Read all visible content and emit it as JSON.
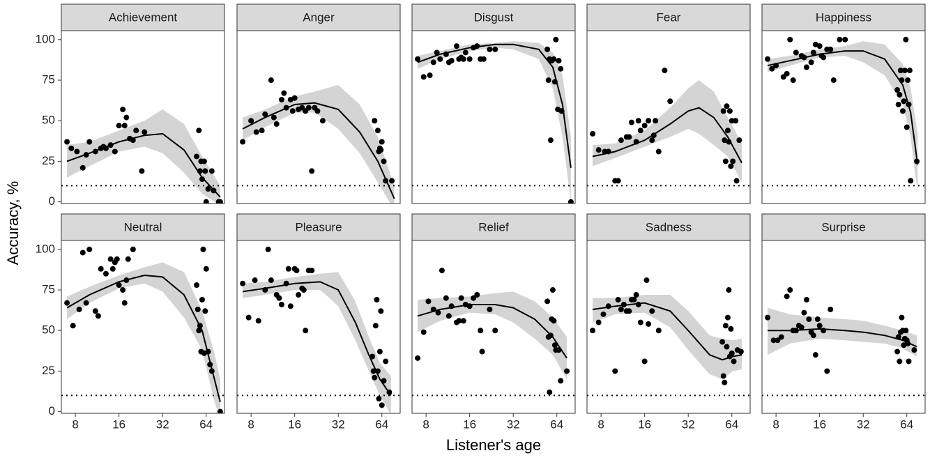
{
  "xlabel": "Listener's age",
  "ylabel": "Accuracy, %",
  "xlim": [
    6.4,
    85.6
  ],
  "ylim": [
    -1,
    105.5
  ],
  "xscale": "log2",
  "xticks": [
    8,
    16,
    32,
    64
  ],
  "yticks": [
    0,
    25,
    50,
    75,
    100
  ],
  "hline": 10,
  "point_color": "#000000",
  "line_color": "#000000",
  "ribbon_color": "#d4d4d4",
  "chart_data": [
    {
      "type": "scatter",
      "title": "Achievement",
      "x": [
        7,
        7.5,
        8.2,
        9,
        9.5,
        10,
        11,
        12,
        12.5,
        13,
        14,
        15,
        16,
        17,
        17.5,
        18,
        19,
        20,
        21,
        23,
        24,
        55,
        57,
        58,
        59,
        60,
        62,
        63,
        64,
        66,
        70,
        72,
        78,
        80
      ],
      "values": [
        37,
        33,
        31,
        21,
        29,
        37,
        31,
        33,
        34,
        33,
        35,
        31,
        47,
        57,
        47,
        52,
        39,
        38,
        44,
        19,
        43,
        28,
        44,
        19,
        25,
        14,
        25,
        19,
        0,
        8,
        19,
        7,
        0,
        0
      ],
      "smooth": {
        "x": [
          7,
          10,
          16,
          24,
          32,
          45,
          60,
          80
        ],
        "values": [
          25,
          30,
          37,
          41,
          42,
          32,
          15,
          3
        ],
        "lower": [
          15,
          22,
          31,
          34,
          30,
          18,
          5,
          -2
        ],
        "upper": [
          35,
          37,
          44,
          50,
          57,
          48,
          28,
          10
        ]
      }
    },
    {
      "type": "scatter",
      "title": "Anger",
      "x": [
        7,
        8,
        8.7,
        9.5,
        10,
        11,
        11.5,
        12,
        13,
        13.5,
        14,
        15,
        15.5,
        16,
        17,
        18,
        19,
        20,
        21,
        22,
        23,
        25,
        57,
        60,
        61,
        62,
        63,
        64,
        66,
        68,
        75
      ],
      "values": [
        37,
        50,
        43,
        44,
        54,
        75,
        52,
        48,
        63,
        67,
        58,
        63,
        56,
        64,
        57,
        58,
        56,
        58,
        19,
        58,
        56,
        50,
        50,
        44,
        31,
        33,
        32,
        37,
        25,
        13,
        13
      ],
      "smooth": {
        "x": [
          7,
          10,
          16,
          22,
          32,
          45,
          60,
          78
        ],
        "values": [
          45,
          52,
          60,
          61,
          57,
          43,
          25,
          2
        ],
        "lower": [
          38,
          46,
          55,
          55,
          45,
          30,
          12,
          -5
        ],
        "upper": [
          52,
          57,
          65,
          68,
          72,
          60,
          40,
          10
        ]
      }
    },
    {
      "type": "scatter",
      "title": "Disgust",
      "x": [
        7,
        7.7,
        8.5,
        9,
        9.5,
        10,
        11,
        11.5,
        12,
        13,
        13.5,
        14,
        14.5,
        15,
        16,
        17,
        18,
        19,
        20,
        22,
        24,
        55,
        56,
        57,
        58,
        59,
        61,
        62,
        63,
        65,
        66,
        68,
        69,
        80
      ],
      "values": [
        88,
        77,
        78,
        86,
        92,
        88,
        91,
        86,
        87,
        96,
        88,
        89,
        88,
        92,
        88,
        95,
        96,
        88,
        88,
        94,
        94,
        94,
        75,
        88,
        38,
        87,
        88,
        74,
        100,
        57,
        87,
        82,
        56,
        0
      ],
      "smooth": {
        "x": [
          7,
          10,
          16,
          24,
          32,
          48,
          60,
          70,
          80
        ],
        "values": [
          86,
          91,
          95,
          97,
          97,
          94,
          83,
          60,
          21
        ],
        "lower": [
          82,
          88,
          93,
          95,
          94,
          88,
          70,
          40,
          0
        ],
        "upper": [
          90,
          93,
          97,
          98,
          99,
          98,
          92,
          78,
          40
        ]
      }
    },
    {
      "type": "scatter",
      "title": "Fear",
      "x": [
        7,
        7.7,
        8.5,
        9,
        10,
        10.5,
        11,
        12,
        12.5,
        13,
        14,
        14.5,
        15,
        16,
        17,
        18,
        18.5,
        19,
        20,
        22,
        24,
        56,
        57,
        58,
        59,
        60,
        61,
        62,
        63,
        64,
        65,
        68,
        69,
        72
      ],
      "values": [
        42,
        32,
        31,
        31,
        13,
        13,
        38,
        40,
        40,
        49,
        37,
        50,
        44,
        47,
        50,
        38,
        41,
        50,
        31,
        81,
        62,
        56,
        38,
        25,
        59,
        44,
        37,
        56,
        22,
        50,
        25,
        50,
        13,
        38
      ],
      "smooth": {
        "x": [
          7,
          10,
          16,
          24,
          32,
          38,
          48,
          60,
          75
        ],
        "values": [
          28,
          31,
          38,
          48,
          56,
          58,
          52,
          40,
          24
        ],
        "lower": [
          22,
          27,
          34,
          40,
          45,
          42,
          35,
          28,
          12
        ],
        "upper": [
          35,
          36,
          44,
          58,
          70,
          75,
          68,
          52,
          36
        ]
      }
    },
    {
      "type": "scatter",
      "title": "Happiness",
      "x": [
        7,
        7.5,
        8,
        9,
        9.5,
        10,
        10.5,
        11,
        12,
        12.5,
        13,
        14,
        14.5,
        15,
        16,
        16.5,
        17,
        18,
        19,
        20,
        22,
        24,
        55,
        56,
        57,
        58,
        59,
        60,
        61,
        62,
        63,
        64,
        65,
        66,
        67,
        68,
        75
      ],
      "values": [
        88,
        82,
        84,
        77,
        79,
        100,
        75,
        92,
        90,
        89,
        83,
        86,
        92,
        97,
        96,
        90,
        89,
        94,
        94,
        75,
        100,
        100,
        69,
        60,
        66,
        81,
        75,
        56,
        62,
        81,
        100,
        46,
        75,
        60,
        81,
        13,
        25
      ],
      "smooth": {
        "x": [
          7,
          10,
          16,
          24,
          32,
          45,
          60,
          68,
          76
        ],
        "values": [
          84,
          87,
          91,
          93,
          93,
          88,
          72,
          55,
          23
        ],
        "lower": [
          80,
          84,
          89,
          90,
          86,
          78,
          60,
          40,
          5
        ],
        "upper": [
          88,
          90,
          94,
          96,
          99,
          97,
          85,
          70,
          42
        ]
      }
    },
    {
      "type": "scatter",
      "title": "Neutral",
      "x": [
        7,
        7.7,
        8.5,
        9,
        9.5,
        10,
        11,
        11.5,
        12,
        13,
        14,
        14.5,
        15,
        15.5,
        16,
        17,
        17.5,
        18,
        18.5,
        20,
        55,
        56,
        57,
        58,
        59,
        60,
        61,
        62,
        63,
        64,
        66,
        68,
        70,
        80
      ],
      "values": [
        67,
        53,
        63,
        98,
        67,
        100,
        62,
        59,
        88,
        85,
        94,
        88,
        92,
        94,
        78,
        75,
        67,
        81,
        94,
        100,
        78,
        63,
        50,
        53,
        37,
        69,
        100,
        36,
        62,
        88,
        37,
        29,
        25,
        0
      ],
      "smooth": {
        "x": [
          7,
          10,
          16,
          24,
          32,
          45,
          60,
          72,
          80
        ],
        "values": [
          64,
          72,
          80,
          84,
          83,
          72,
          50,
          22,
          6
        ],
        "lower": [
          57,
          67,
          76,
          79,
          74,
          58,
          38,
          8,
          -5
        ],
        "upper": [
          71,
          77,
          84,
          89,
          92,
          86,
          62,
          38,
          20
        ]
      }
    },
    {
      "type": "scatter",
      "title": "Pleasure",
      "x": [
        7,
        7.7,
        8.5,
        9,
        10,
        10.5,
        11,
        12,
        12.5,
        13,
        14,
        14.5,
        15,
        16,
        16.5,
        17,
        18,
        18.5,
        19,
        20,
        21,
        55,
        56,
        57,
        58,
        59,
        60,
        61,
        62,
        63,
        64,
        66,
        68,
        72
      ],
      "values": [
        79,
        58,
        81,
        56,
        75,
        100,
        81,
        72,
        70,
        66,
        79,
        88,
        65,
        88,
        87,
        72,
        76,
        75,
        50,
        87,
        87,
        34,
        25,
        21,
        53,
        69,
        25,
        8,
        37,
        62,
        4,
        19,
        31,
        12
      ],
      "smooth": {
        "x": [
          7,
          10,
          16,
          24,
          32,
          42,
          52,
          62,
          74
        ],
        "values": [
          74,
          76,
          79,
          80,
          75,
          55,
          35,
          20,
          10
        ],
        "lower": [
          70,
          72,
          75,
          75,
          65,
          44,
          25,
          10,
          -2
        ],
        "upper": [
          79,
          80,
          83,
          85,
          86,
          68,
          46,
          30,
          22
        ]
      }
    },
    {
      "type": "scatter",
      "title": "Relief",
      "x": [
        7,
        7.7,
        8.3,
        9,
        9.7,
        10.3,
        11,
        11.5,
        12,
        13,
        13.5,
        14,
        14.5,
        15,
        16,
        17,
        18,
        19,
        19.5,
        22,
        24,
        55,
        56,
        57,
        58,
        59,
        60,
        61,
        62,
        63,
        66,
        68,
        75
      ],
      "values": [
        33,
        49,
        68,
        63,
        61,
        87,
        70,
        59,
        65,
        55,
        56,
        70,
        56,
        66,
        65,
        70,
        72,
        50,
        37,
        63,
        50,
        68,
        46,
        12,
        47,
        57,
        75,
        56,
        41,
        38,
        38,
        19,
        25
      ],
      "smooth": {
        "x": [
          7,
          10,
          16,
          24,
          32,
          45,
          60,
          75
        ],
        "values": [
          59,
          63,
          66,
          66,
          64,
          57,
          46,
          33
        ],
        "lower": [
          49,
          56,
          61,
          60,
          55,
          45,
          35,
          20
        ],
        "upper": [
          69,
          70,
          71,
          73,
          74,
          68,
          58,
          46
        ]
      }
    },
    {
      "type": "scatter",
      "title": "Sadness",
      "x": [
        7,
        7.7,
        8.3,
        9,
        10,
        10.5,
        11,
        11.5,
        12,
        12.5,
        13,
        13.5,
        14,
        14.5,
        15,
        16,
        16.5,
        17,
        18,
        20,
        55,
        56,
        57,
        58,
        59,
        60,
        61,
        62,
        63,
        64,
        66,
        70,
        74
      ],
      "values": [
        50,
        55,
        60,
        65,
        25,
        69,
        63,
        66,
        62,
        62,
        69,
        69,
        72,
        66,
        55,
        31,
        81,
        54,
        62,
        50,
        43,
        22,
        18,
        53,
        40,
        58,
        75,
        34,
        51,
        36,
        31,
        38,
        37
      ],
      "smooth": {
        "x": [
          7,
          10,
          16,
          24,
          32,
          45,
          55,
          65,
          75
        ],
        "values": [
          63,
          65,
          67,
          62,
          50,
          35,
          32,
          34,
          35
        ],
        "lower": [
          55,
          60,
          61,
          52,
          38,
          23,
          20,
          25,
          26
        ],
        "upper": [
          70,
          70,
          72,
          72,
          62,
          47,
          45,
          44,
          45
        ]
      }
    },
    {
      "type": "scatter",
      "title": "Surprise",
      "x": [
        7,
        7.7,
        8.2,
        8.7,
        9.5,
        10,
        10.5,
        11,
        11.5,
        12,
        12.5,
        13,
        13.5,
        14,
        14.5,
        15,
        15.5,
        16,
        17,
        18,
        19,
        55,
        56,
        57,
        58,
        59,
        60,
        61,
        62,
        63,
        64,
        65,
        66,
        72
      ],
      "values": [
        58,
        44,
        44,
        46,
        71,
        75,
        50,
        50,
        53,
        52,
        61,
        69,
        57,
        49,
        47,
        35,
        57,
        53,
        50,
        25,
        63,
        37,
        46,
        31,
        49,
        58,
        50,
        41,
        45,
        50,
        44,
        42,
        31,
        38
      ],
      "smooth": {
        "x": [
          7,
          10,
          16,
          24,
          32,
          45,
          60,
          75
        ],
        "values": [
          50,
          50,
          51,
          50,
          49,
          47,
          44,
          40
        ],
        "lower": [
          35,
          42,
          45,
          44,
          43,
          42,
          39,
          34
        ],
        "upper": [
          64,
          60,
          58,
          57,
          56,
          53,
          50,
          47
        ]
      }
    }
  ]
}
